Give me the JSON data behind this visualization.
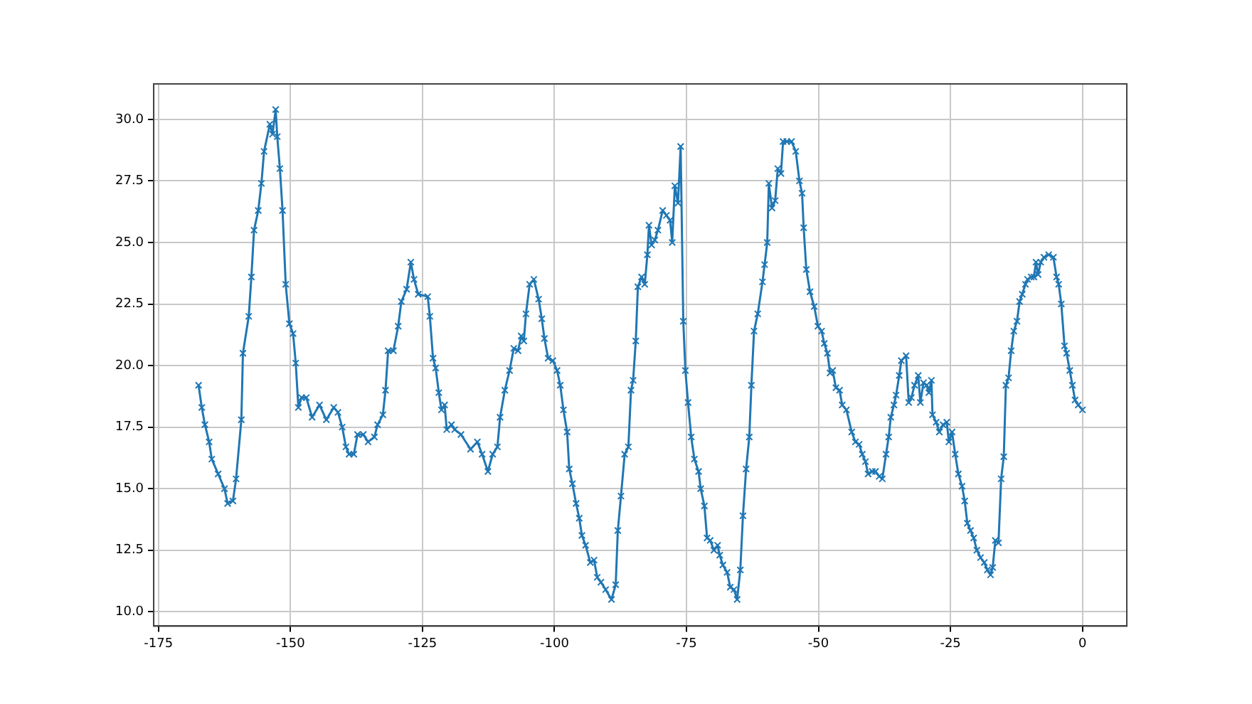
{
  "chart_data": {
    "type": "line",
    "marker": "cross",
    "line_style": "solid",
    "grid": true,
    "legend": false,
    "xlim": [
      -175.9,
      8.4
    ],
    "ylim": [
      9.42,
      31.44
    ],
    "xticks": [
      -175,
      -150,
      -125,
      -100,
      -75,
      -50,
      -25,
      0
    ],
    "yticks": [
      {
        "value": 10,
        "label": "10.0"
      },
      {
        "value": 12.5,
        "label": "12.5"
      },
      {
        "value": 15,
        "label": "15.0"
      },
      {
        "value": 17.5,
        "label": "17.5"
      },
      {
        "value": 20,
        "label": "20.0"
      },
      {
        "value": 22.5,
        "label": "22.5"
      },
      {
        "value": 25,
        "label": "25.0"
      },
      {
        "value": 27.5,
        "label": "27.5"
      },
      {
        "value": 30,
        "label": "30.0"
      }
    ],
    "series": [
      {
        "color": "#1f77b4",
        "x": [
          -167.4,
          -166.8,
          -166.2,
          -165.4,
          -164.9,
          -163.7,
          -162.5,
          -161.9,
          -160.9,
          -160.3,
          -159.3,
          -159,
          -157.9,
          -157.4,
          -156.9,
          -156.1,
          -155.5,
          -155,
          -153.9,
          -153.4,
          -152.8,
          -152.5,
          -152,
          -151.5,
          -150.9,
          -150.2,
          -149.5,
          -149,
          -148.5,
          -147.9,
          -147,
          -145.9,
          -144.5,
          -143.2,
          -141.8,
          -141,
          -140.2,
          -139.5,
          -138.9,
          -138,
          -137.3,
          -136.2,
          -135.3,
          -134.1,
          -133.5,
          -132.5,
          -132,
          -131.5,
          -130.5,
          -129.6,
          -129,
          -128,
          -127.2,
          -126.6,
          -125.8,
          -124,
          -123.6,
          -123,
          -122.5,
          -121.9,
          -121.4,
          -120.8,
          -120.4,
          -119.5,
          -118.9,
          -117.7,
          -115.9,
          -114.6,
          -113.7,
          -112.6,
          -111.7,
          -110.8,
          -110.3,
          -109.4,
          -108.5,
          -107.7,
          -106.9,
          -106.3,
          -105.8,
          -105.4,
          -104.7,
          -103.9,
          -103,
          -102.4,
          -101.9,
          -101.2,
          -100.3,
          -99.5,
          -98.9,
          -98.3,
          -97.6,
          -97.2,
          -96.6,
          -95.9,
          -95.3,
          -94.8,
          -94.1,
          -93.2,
          -92.5,
          -91.9,
          -91.2,
          -90.3,
          -89.2,
          -88.4,
          -88,
          -87.4,
          -86.7,
          -86,
          -85.5,
          -85.1,
          -84.6,
          -84.2,
          -83.5,
          -82.9,
          -82.4,
          -82.1,
          -81.6,
          -81,
          -80.4,
          -79.5,
          -78.8,
          -78.1,
          -77.7,
          -77.2,
          -76.6,
          -76.1,
          -75.6,
          -75.2,
          -74.7,
          -74.1,
          -73.5,
          -72.7,
          -72.3,
          -71.6,
          -71.1,
          -70.5,
          -69.8,
          -69.1,
          -68.7,
          -68.1,
          -67.3,
          -66.7,
          -66,
          -65.4,
          -64.8,
          -64.3,
          -63.7,
          -63.1,
          -62.7,
          -62.2,
          -61.5,
          -60.6,
          -60.2,
          -59.7,
          -59.4,
          -58.8,
          -58.2,
          -57.7,
          -57.1,
          -56.7,
          -56,
          -55.1,
          -54.3,
          -53.6,
          -53.1,
          -52.8,
          -52.3,
          -51.6,
          -50.8,
          -50.1,
          -49.4,
          -48.9,
          -48.3,
          -47.8,
          -47.3,
          -46.7,
          -46,
          -45.5,
          -44.7,
          -43.7,
          -43,
          -42.3,
          -41.7,
          -41.1,
          -40.6,
          -39.8,
          -39.2,
          -38.5,
          -37.9,
          -37.2,
          -36.7,
          -36.3,
          -35.7,
          -35.3,
          -34.7,
          -34.3,
          -33.4,
          -32.9,
          -32.4,
          -31.8,
          -31.1,
          -30.7,
          -30.1,
          -29.5,
          -29.1,
          -28.6,
          -28.4,
          -27.7,
          -27.1,
          -26.4,
          -25.7,
          -25.3,
          -24.7,
          -24.1,
          -23.5,
          -22.8,
          -22.3,
          -21.8,
          -21.2,
          -20.6,
          -20,
          -19.3,
          -18.6,
          -18,
          -17.4,
          -17,
          -16.5,
          -15.9,
          -15.4,
          -14.9,
          -14.5,
          -14,
          -13.5,
          -13,
          -12.4,
          -11.9,
          -11.4,
          -10.8,
          -10.4,
          -9.7,
          -9.2,
          -8.8,
          -8.4,
          -7.9,
          -7.3,
          -6.4,
          -5.5,
          -4.9,
          -4.5,
          -4,
          -3.4,
          -3,
          -2.4,
          -1.9,
          -1.4,
          -0.8,
          0
        ],
        "values": [
          19.2,
          18.3,
          17.6,
          16.9,
          16.2,
          15.6,
          15,
          14.4,
          14.5,
          15.4,
          17.8,
          20.5,
          22,
          23.6,
          25.5,
          26.3,
          27.4,
          28.7,
          29.8,
          29.4,
          30.4,
          29.3,
          28,
          26.3,
          23.3,
          21.7,
          21.3,
          20.1,
          18.3,
          18.7,
          18.7,
          17.9,
          18.4,
          17.8,
          18.3,
          18.1,
          17.5,
          16.7,
          16.4,
          16.4,
          17.2,
          17.2,
          16.9,
          17.1,
          17.6,
          18,
          19,
          20.6,
          20.6,
          21.6,
          22.6,
          23.1,
          24.2,
          23.5,
          22.9,
          22.8,
          22,
          20.3,
          19.9,
          18.9,
          18.2,
          18.4,
          17.4,
          17.6,
          17.4,
          17.2,
          16.6,
          16.9,
          16.4,
          15.7,
          16.4,
          16.7,
          17.9,
          19,
          19.8,
          20.7,
          20.6,
          21.2,
          21,
          22.1,
          23.3,
          23.5,
          22.7,
          21.9,
          21.1,
          20.3,
          20.2,
          19.8,
          19.2,
          18.2,
          17.3,
          15.8,
          15.2,
          14.4,
          13.8,
          13.1,
          12.7,
          12,
          12.1,
          11.4,
          11.2,
          10.9,
          10.5,
          11.1,
          13.3,
          14.7,
          16.4,
          16.7,
          19,
          19.4,
          21,
          23.2,
          23.6,
          23.3,
          24.5,
          25.7,
          24.9,
          25.1,
          25.5,
          26.3,
          26.1,
          25.9,
          25,
          27.3,
          26.6,
          28.9,
          21.8,
          19.8,
          18.5,
          17.1,
          16.2,
          15.7,
          15,
          14.3,
          13,
          12.9,
          12.5,
          12.7,
          12.3,
          11.9,
          11.6,
          11,
          10.9,
          10.5,
          11.7,
          13.9,
          15.8,
          17.1,
          19.2,
          21.4,
          22.1,
          23.4,
          24.1,
          25,
          27.4,
          26.4,
          26.7,
          28,
          27.8,
          29.1,
          29.1,
          29.1,
          28.7,
          27.5,
          27,
          25.6,
          23.9,
          23,
          22.4,
          21.6,
          21.4,
          20.9,
          20.5,
          19.7,
          19.8,
          19.1,
          19,
          18.4,
          18.2,
          17.3,
          16.9,
          16.8,
          16.4,
          16.1,
          15.6,
          15.7,
          15.7,
          15.5,
          15.4,
          16.4,
          17.1,
          17.9,
          18.4,
          18.8,
          19.6,
          20.2,
          20.4,
          18.5,
          18.7,
          19.2,
          19.6,
          18.5,
          19.3,
          19.2,
          18.9,
          19.4,
          18,
          17.7,
          17.3,
          17.6,
          17.7,
          16.9,
          17.3,
          16.4,
          15.6,
          15.1,
          14.5,
          13.6,
          13.3,
          13,
          12.5,
          12.2,
          12,
          11.7,
          11.5,
          11.8,
          12.9,
          12.8,
          15.4,
          16.3,
          19.2,
          19.5,
          20.6,
          21.4,
          21.8,
          22.6,
          22.9,
          23.3,
          23.5,
          23.6,
          23.6,
          24.2,
          23.7,
          24.2,
          24.4,
          24.5,
          24.4,
          23.6,
          23.3,
          22.5,
          20.8,
          20.5,
          19.8,
          19.2,
          18.6,
          18.4,
          18.2
        ]
      }
    ]
  }
}
